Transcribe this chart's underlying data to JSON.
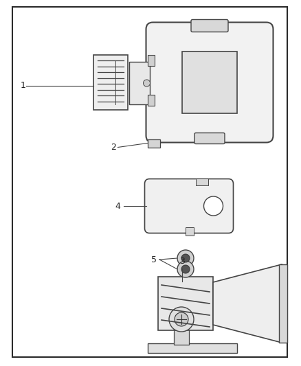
{
  "bg_color": "#ffffff",
  "border_color": "#2a2a2a",
  "line_color": "#444444",
  "label_color": "#222222",
  "figsize": [
    4.38,
    5.33
  ],
  "dpi": 100
}
